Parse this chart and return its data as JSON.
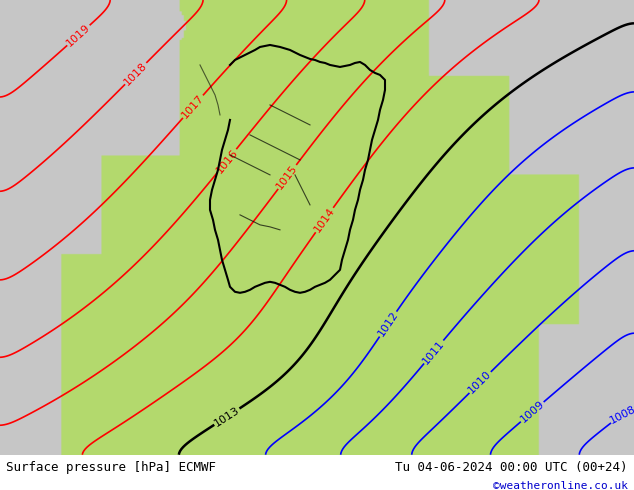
{
  "title_left": "Surface pressure [hPa] ECMWF",
  "title_right": "Tu 04-06-2024 00:00 UTC (00+24)",
  "copyright": "©weatheronline.co.uk",
  "footer_color": "#000000",
  "copyright_color": "#0000cc",
  "green_color": [
    0.702,
    0.851,
    0.431
  ],
  "gray_color": [
    0.78,
    0.78,
    0.78
  ],
  "levels_black": [
    1013
  ],
  "levels_red": [
    1014,
    1015,
    1016,
    1017,
    1018,
    1019
  ],
  "levels_blue": [
    1008,
    1009,
    1010,
    1011,
    1012
  ],
  "pressure_min": 1007,
  "pressure_max": 1020,
  "lw_black": 1.8,
  "lw_red": 1.2,
  "lw_blue": 1.2,
  "label_fontsize": 8
}
